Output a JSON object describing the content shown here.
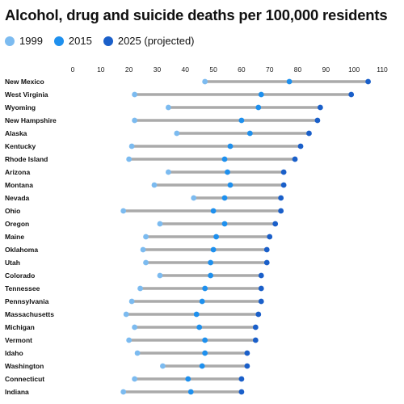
{
  "chart_data": {
    "type": "dumbbell",
    "title": "Alcohol, drug and suicide deaths per 100,000 residents",
    "legend": [
      {
        "name": "1999",
        "color": "#7cbbf0"
      },
      {
        "name": "2015",
        "color": "#1e90ee"
      },
      {
        "name": "2025 (projected)",
        "color": "#1a5fc9"
      }
    ],
    "legend_position": "top-left",
    "x_ticks": [
      0,
      10,
      20,
      30,
      40,
      50,
      60,
      70,
      80,
      90,
      100,
      110
    ],
    "xlim": [
      0,
      110
    ],
    "grid": false,
    "bar_color": "#aaaaaa",
    "rows": [
      {
        "state": "New Mexico",
        "v1999": 47,
        "v2015": 77,
        "v2025": 105
      },
      {
        "state": "West Virginia",
        "v1999": 22,
        "v2015": 67,
        "v2025": 99
      },
      {
        "state": "Wyoming",
        "v1999": 34,
        "v2015": 66,
        "v2025": 88
      },
      {
        "state": "New Hampshire",
        "v1999": 22,
        "v2015": 60,
        "v2025": 87
      },
      {
        "state": "Alaska",
        "v1999": 37,
        "v2015": 63,
        "v2025": 84
      },
      {
        "state": "Kentucky",
        "v1999": 21,
        "v2015": 56,
        "v2025": 81
      },
      {
        "state": "Rhode Island",
        "v1999": 20,
        "v2015": 54,
        "v2025": 79
      },
      {
        "state": "Arizona",
        "v1999": 34,
        "v2015": 55,
        "v2025": 75
      },
      {
        "state": "Montana",
        "v1999": 29,
        "v2015": 56,
        "v2025": 75
      },
      {
        "state": "Nevada",
        "v1999": 43,
        "v2015": 54,
        "v2025": 74
      },
      {
        "state": "Ohio",
        "v1999": 18,
        "v2015": 50,
        "v2025": 74
      },
      {
        "state": "Oregon",
        "v1999": 31,
        "v2015": 54,
        "v2025": 72
      },
      {
        "state": "Maine",
        "v1999": 26,
        "v2015": 51,
        "v2025": 70
      },
      {
        "state": "Oklahoma",
        "v1999": 25,
        "v2015": 50,
        "v2025": 69
      },
      {
        "state": "Utah",
        "v1999": 26,
        "v2015": 49,
        "v2025": 69
      },
      {
        "state": "Colorado",
        "v1999": 31,
        "v2015": 49,
        "v2025": 67
      },
      {
        "state": "Tennessee",
        "v1999": 24,
        "v2015": 47,
        "v2025": 67
      },
      {
        "state": "Pennsylvania",
        "v1999": 21,
        "v2015": 46,
        "v2025": 67
      },
      {
        "state": "Massachusetts",
        "v1999": 19,
        "v2015": 44,
        "v2025": 66
      },
      {
        "state": "Michigan",
        "v1999": 22,
        "v2015": 45,
        "v2025": 65
      },
      {
        "state": "Vermont",
        "v1999": 20,
        "v2015": 47,
        "v2025": 65
      },
      {
        "state": "Idaho",
        "v1999": 23,
        "v2015": 47,
        "v2025": 62
      },
      {
        "state": "Washington",
        "v1999": 32,
        "v2015": 46,
        "v2025": 62
      },
      {
        "state": "Connecticut",
        "v1999": 22,
        "v2015": 41,
        "v2025": 60
      },
      {
        "state": "Indiana",
        "v1999": 18,
        "v2015": 42,
        "v2025": 60
      }
    ]
  }
}
